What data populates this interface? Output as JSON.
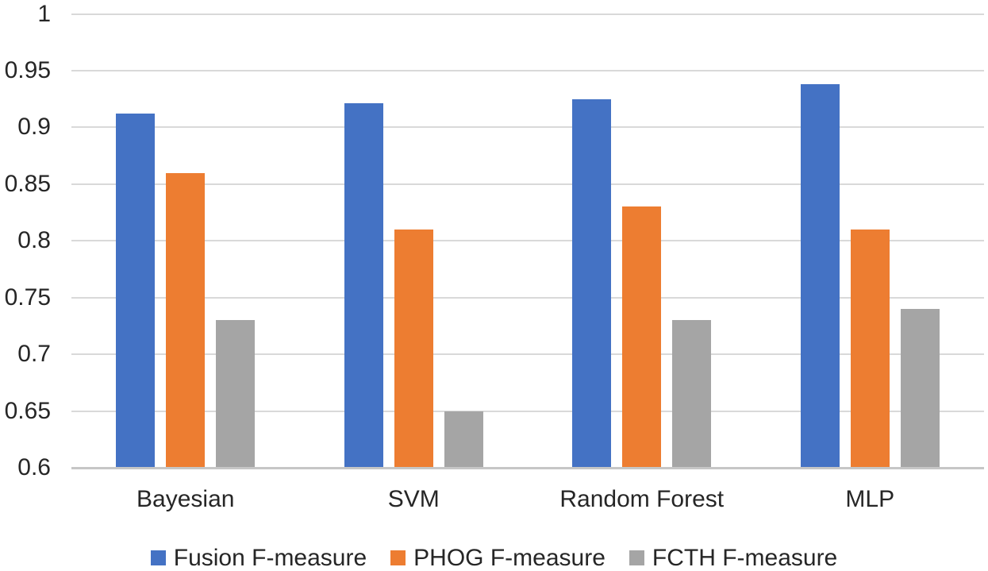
{
  "figure": {
    "background": "#FFFFFF"
  },
  "styles": {
    "gridline_color": "#D9D9D9",
    "axis_line_color": "#C6C6C6",
    "label_color": "#262626"
  },
  "chart_data": {
    "type": "bar",
    "title": "",
    "xlabel": "",
    "ylabel": "",
    "categories": [
      "Bayesian",
      "SVM",
      "Random Forest",
      "MLP"
    ],
    "series": [
      {
        "name": "Fusion F-measure",
        "color": "#4472C4",
        "values": [
          0.912,
          0.921,
          0.925,
          0.938
        ]
      },
      {
        "name": "PHOG F-measure",
        "color": "#ED7D31",
        "values": [
          0.86,
          0.81,
          0.83,
          0.81
        ]
      },
      {
        "name": "FCTH F-measure",
        "color": "#A5A5A5",
        "values": [
          0.73,
          0.65,
          0.73,
          0.74
        ]
      }
    ],
    "ylim": [
      0.6,
      1.0
    ],
    "ytick_step": 0.05,
    "yticks_labels": [
      "1",
      "0.95",
      "0.9",
      "0.85",
      "0.8",
      "0.75",
      "0.7",
      "0.65",
      "0.6"
    ],
    "grid": true,
    "legend_position": "bottom"
  }
}
